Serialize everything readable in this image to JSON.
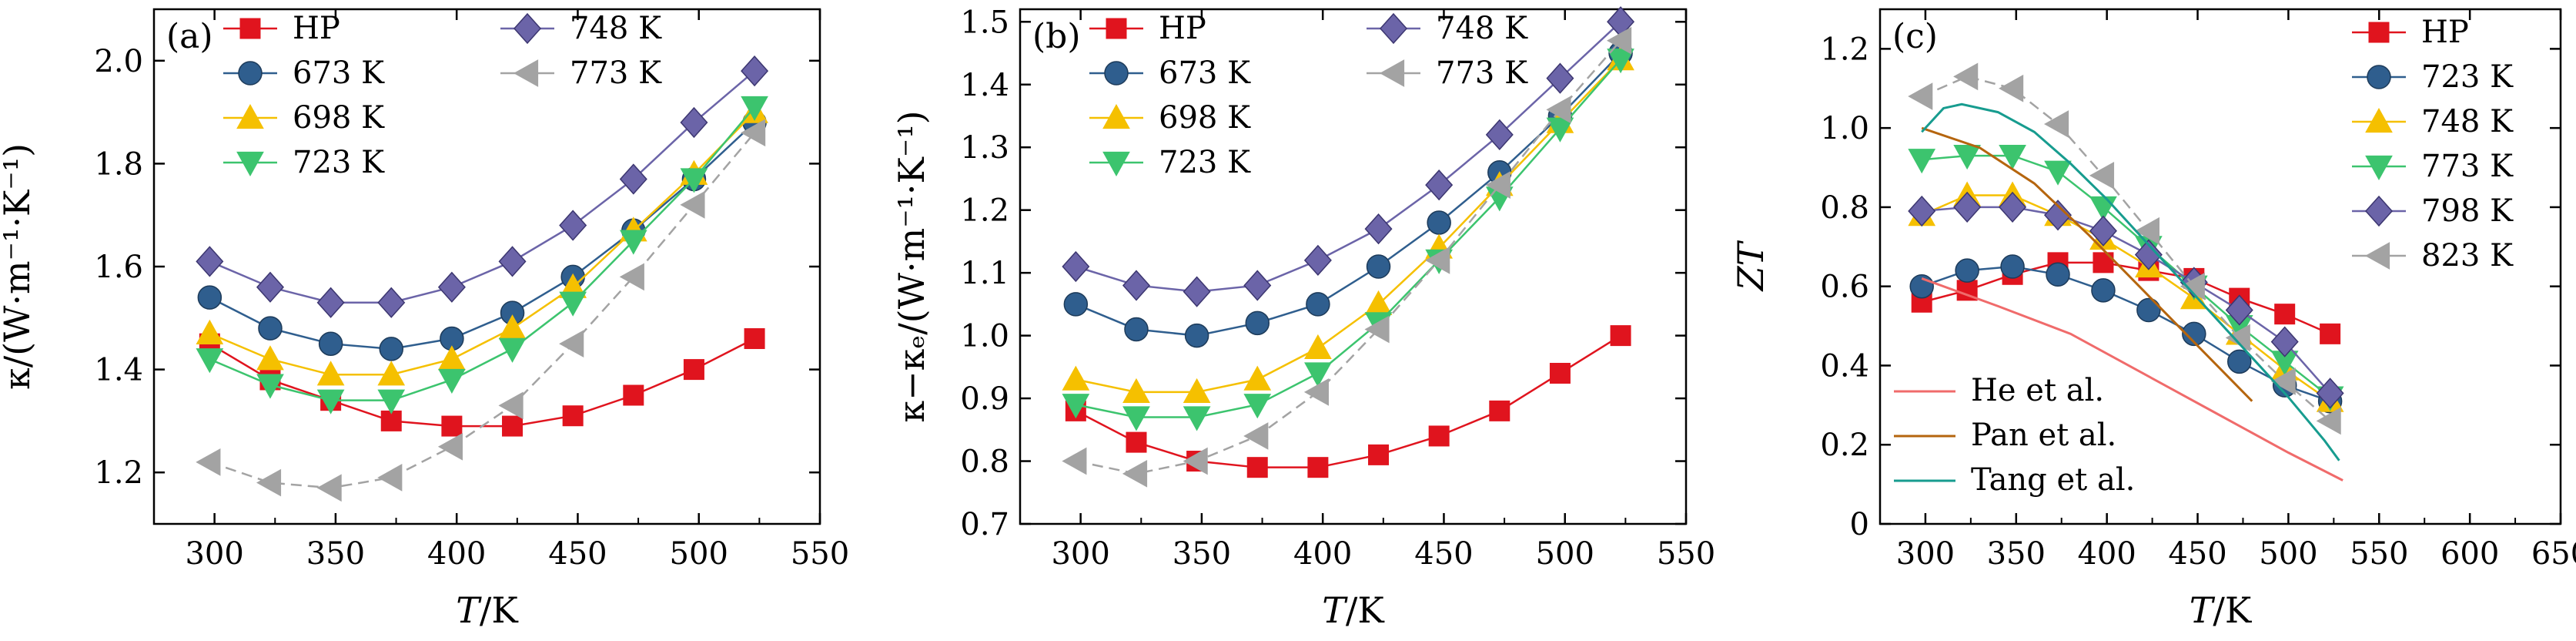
{
  "chart_data": [
    {
      "type": "line",
      "panel_label": "(a)",
      "xlabel": "T/K",
      "ylabel": "κ/(W·m⁻¹·K⁻¹)",
      "xlim": [
        275,
        550
      ],
      "ylim": [
        1.1,
        2.1
      ],
      "xticks": [
        300,
        350,
        400,
        450,
        500,
        550
      ],
      "yticks": [
        1.2,
        1.4,
        1.6,
        1.8,
        2.0
      ],
      "ytick_labels": [
        "1.2",
        "1.4",
        "1.6",
        "1.8",
        "2.0"
      ],
      "grid": false,
      "legend": {
        "placement": "top-left",
        "columns": 2
      },
      "series": [
        {
          "name": "HP",
          "color": "#e0141e",
          "marker": "square",
          "x": [
            298,
            323,
            348,
            373,
            398,
            423,
            448,
            473,
            498,
            523
          ],
          "y": [
            1.45,
            1.38,
            1.34,
            1.3,
            1.29,
            1.29,
            1.31,
            1.35,
            1.4,
            1.46
          ]
        },
        {
          "name": "673 K",
          "color": "#2f5e8e",
          "marker": "circle",
          "x": [
            298,
            323,
            348,
            373,
            398,
            423,
            448,
            473,
            498,
            523
          ],
          "y": [
            1.54,
            1.48,
            1.45,
            1.44,
            1.46,
            1.51,
            1.58,
            1.67,
            1.77,
            1.88
          ]
        },
        {
          "name": "698 K",
          "color": "#f5c000",
          "marker": "triangle-up",
          "x": [
            298,
            323,
            348,
            373,
            398,
            423,
            448,
            473,
            498,
            523
          ],
          "y": [
            1.47,
            1.42,
            1.39,
            1.39,
            1.42,
            1.48,
            1.56,
            1.67,
            1.78,
            1.9
          ]
        },
        {
          "name": "723 K",
          "color": "#3cc46e",
          "marker": "triangle-down",
          "x": [
            298,
            323,
            348,
            373,
            398,
            423,
            448,
            473,
            498,
            523
          ],
          "y": [
            1.42,
            1.37,
            1.34,
            1.34,
            1.38,
            1.44,
            1.53,
            1.65,
            1.77,
            1.91
          ]
        },
        {
          "name": "748 K",
          "color": "#6b64a8",
          "marker": "diamond",
          "x": [
            298,
            323,
            348,
            373,
            398,
            423,
            448,
            473,
            498,
            523
          ],
          "y": [
            1.61,
            1.56,
            1.53,
            1.53,
            1.56,
            1.61,
            1.68,
            1.77,
            1.88,
            1.98
          ]
        },
        {
          "name": "773 K",
          "color": "#a3a3a3",
          "marker": "triangle-left",
          "x": [
            298,
            323,
            348,
            373,
            398,
            423,
            448,
            473,
            498,
            523
          ],
          "y": [
            1.22,
            1.18,
            1.17,
            1.19,
            1.25,
            1.33,
            1.45,
            1.58,
            1.72,
            1.86
          ]
        }
      ]
    },
    {
      "type": "line",
      "panel_label": "(b)",
      "xlabel": "T/K",
      "ylabel": "κ−κₑ/(W·m⁻¹·K⁻¹)",
      "xlim": [
        275,
        550
      ],
      "ylim": [
        0.7,
        1.52
      ],
      "xticks": [
        300,
        350,
        400,
        450,
        500,
        550
      ],
      "yticks": [
        0.7,
        0.8,
        0.9,
        1.0,
        1.1,
        1.2,
        1.3,
        1.4,
        1.5
      ],
      "ytick_labels": [
        "0.7",
        "0.8",
        "0.9",
        "1.0",
        "1.1",
        "1.2",
        "1.3",
        "1.4",
        "1.5"
      ],
      "grid": false,
      "legend": {
        "placement": "top-left",
        "columns": 2
      },
      "series": [
        {
          "name": "HP",
          "color": "#e0141e",
          "marker": "square",
          "x": [
            298,
            323,
            348,
            373,
            398,
            423,
            448,
            473,
            498,
            523
          ],
          "y": [
            0.88,
            0.83,
            0.8,
            0.79,
            0.79,
            0.81,
            0.84,
            0.88,
            0.94,
            1.0
          ]
        },
        {
          "name": "673 K",
          "color": "#2f5e8e",
          "marker": "circle",
          "x": [
            298,
            323,
            348,
            373,
            398,
            423,
            448,
            473,
            498,
            523
          ],
          "y": [
            1.05,
            1.01,
            1.0,
            1.02,
            1.05,
            1.11,
            1.18,
            1.26,
            1.35,
            1.45
          ]
        },
        {
          "name": "698 K",
          "color": "#f5c000",
          "marker": "triangle-up",
          "x": [
            298,
            323,
            348,
            373,
            398,
            423,
            448,
            473,
            498,
            523
          ],
          "y": [
            0.93,
            0.91,
            0.91,
            0.93,
            0.98,
            1.05,
            1.14,
            1.24,
            1.34,
            1.44
          ]
        },
        {
          "name": "723 K",
          "color": "#3cc46e",
          "marker": "triangle-down",
          "x": [
            298,
            323,
            348,
            373,
            398,
            423,
            448,
            473,
            498,
            523
          ],
          "y": [
            0.89,
            0.87,
            0.87,
            0.89,
            0.94,
            1.02,
            1.12,
            1.22,
            1.33,
            1.44
          ]
        },
        {
          "name": "748 K",
          "color": "#6b64a8",
          "marker": "diamond",
          "x": [
            298,
            323,
            348,
            373,
            398,
            423,
            448,
            473,
            498,
            523
          ],
          "y": [
            1.11,
            1.08,
            1.07,
            1.08,
            1.12,
            1.17,
            1.24,
            1.32,
            1.41,
            1.5
          ]
        },
        {
          "name": "773 K",
          "color": "#a3a3a3",
          "marker": "triangle-left",
          "x": [
            298,
            323,
            348,
            373,
            398,
            423,
            448,
            473,
            498,
            523
          ],
          "y": [
            0.8,
            0.78,
            0.8,
            0.84,
            0.91,
            1.01,
            1.12,
            1.24,
            1.36,
            1.47
          ]
        }
      ]
    },
    {
      "type": "line",
      "panel_label": "(c)",
      "xlabel": "T/K",
      "ylabel": "ZT",
      "xlim": [
        275,
        650
      ],
      "ylim": [
        0,
        1.3
      ],
      "xticks": [
        300,
        350,
        400,
        450,
        500,
        550,
        600,
        650
      ],
      "yticks": [
        0,
        0.2,
        0.4,
        0.6,
        0.8,
        1.0,
        1.2
      ],
      "ytick_labels": [
        "0",
        "0.2",
        "0.4",
        "0.6",
        "0.8",
        "1.0",
        "1.2"
      ],
      "grid": false,
      "legend": {
        "placement": "top-right",
        "columns": 1
      },
      "series": [
        {
          "name": "HP",
          "color": "#e0141e",
          "marker": "square",
          "x": [
            298,
            323,
            348,
            373,
            398,
            423,
            448,
            473,
            498,
            523
          ],
          "y": [
            0.56,
            0.59,
            0.63,
            0.66,
            0.66,
            0.64,
            0.62,
            0.57,
            0.53,
            0.48
          ]
        },
        {
          "name": "723 K",
          "color": "#2f5e8e",
          "marker": "circle",
          "x": [
            298,
            323,
            348,
            373,
            398,
            423,
            448,
            473,
            498,
            523
          ],
          "y": [
            0.6,
            0.64,
            0.65,
            0.63,
            0.59,
            0.54,
            0.48,
            0.41,
            0.35,
            0.31
          ]
        },
        {
          "name": "748 K",
          "color": "#f5c000",
          "marker": "triangle-up",
          "x": [
            298,
            323,
            348,
            373,
            398,
            423,
            448,
            473,
            498,
            523
          ],
          "y": [
            0.78,
            0.83,
            0.83,
            0.78,
            0.72,
            0.65,
            0.57,
            0.48,
            0.39,
            0.31
          ]
        },
        {
          "name": "773 K",
          "color": "#3cc46e",
          "marker": "triangle-down",
          "x": [
            298,
            323,
            348,
            373,
            398,
            423,
            448,
            473,
            498,
            523
          ],
          "y": [
            0.92,
            0.93,
            0.93,
            0.89,
            0.8,
            0.7,
            0.6,
            0.5,
            0.41,
            0.32
          ]
        },
        {
          "name": "798 K",
          "color": "#6b64a8",
          "marker": "diamond",
          "x": [
            298,
            323,
            348,
            373,
            398,
            423,
            448,
            473,
            498,
            523
          ],
          "y": [
            0.79,
            0.8,
            0.8,
            0.78,
            0.74,
            0.68,
            0.61,
            0.54,
            0.46,
            0.33
          ]
        },
        {
          "name": "823 K",
          "color": "#a3a3a3",
          "marker": "triangle-left",
          "x": [
            298,
            323,
            348,
            373,
            398,
            423,
            448,
            473,
            498,
            523
          ],
          "y": [
            1.08,
            1.13,
            1.1,
            1.01,
            0.88,
            0.74,
            0.6,
            0.47,
            0.36,
            0.26
          ]
        },
        {
          "name": "He et al.",
          "color": "#f06b6b",
          "marker": "none",
          "x": [
            298,
            340,
            380,
            420,
            460,
            500,
            530
          ],
          "y": [
            0.62,
            0.55,
            0.48,
            0.38,
            0.28,
            0.18,
            0.11
          ]
        },
        {
          "name": "Pan et al.",
          "color": "#b5650e",
          "marker": "none",
          "x": [
            298,
            330,
            360,
            390,
            420,
            450,
            480
          ],
          "y": [
            1.0,
            0.95,
            0.86,
            0.73,
            0.59,
            0.45,
            0.31
          ]
        },
        {
          "name": "Tang et al.",
          "color": "#179c8f",
          "marker": "none",
          "x": [
            298,
            310,
            320,
            340,
            360,
            380,
            400,
            420,
            440,
            460,
            480,
            500,
            520,
            528
          ],
          "y": [
            0.99,
            1.05,
            1.06,
            1.04,
            0.99,
            0.91,
            0.82,
            0.72,
            0.62,
            0.52,
            0.42,
            0.32,
            0.21,
            0.16
          ]
        }
      ]
    }
  ]
}
